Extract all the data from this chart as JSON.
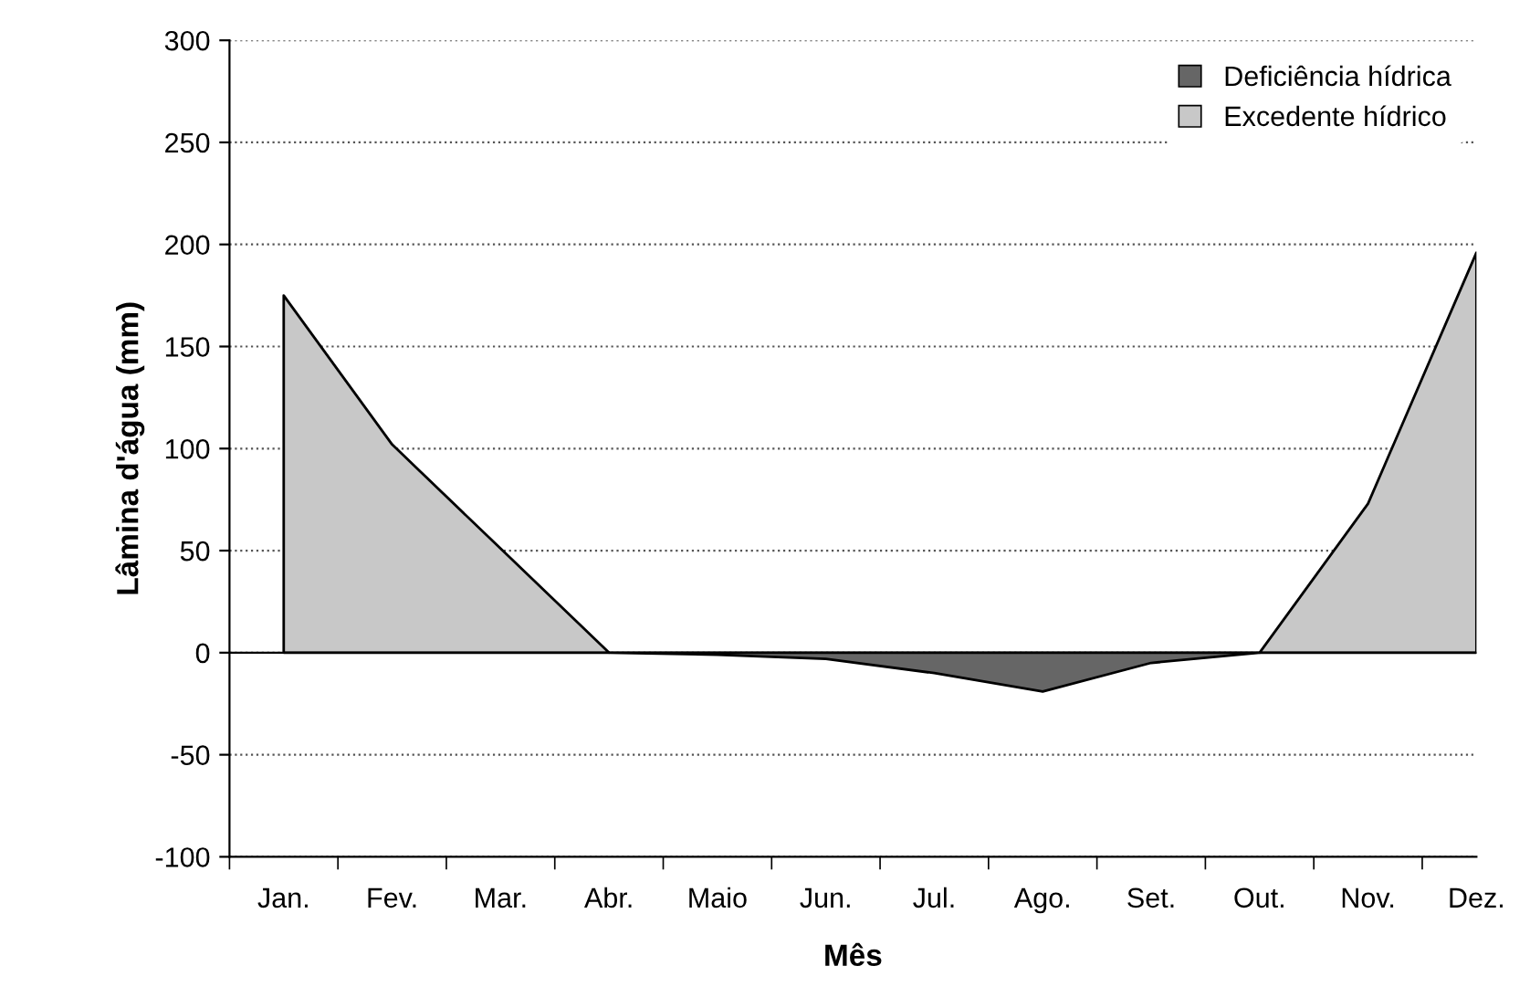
{
  "chart_data": {
    "type": "area",
    "xlabel": "Mês",
    "ylabel": "Lâmina d'água (mm)",
    "categories": [
      "Jan.",
      "Fev.",
      "Mar.",
      "Abr.",
      "Maio",
      "Jun.",
      "Jul.",
      "Ago.",
      "Set.",
      "Out.",
      "Nov.",
      "Dez."
    ],
    "series": [
      {
        "name": "Deficiência hídrica",
        "color": "#666666",
        "values": [
          null,
          null,
          null,
          0,
          -1,
          -3,
          -10,
          -19,
          -5,
          0,
          null,
          null
        ]
      },
      {
        "name": "Excedente hídrico",
        "color": "#c8c8c8",
        "values": [
          175,
          102,
          51,
          0,
          null,
          null,
          null,
          null,
          null,
          0,
          73,
          196
        ]
      }
    ],
    "ylim": [
      -100,
      300
    ],
    "yticks": [
      -100,
      -50,
      0,
      50,
      100,
      150,
      200,
      250,
      300
    ],
    "grid": "y",
    "legend": "top right"
  }
}
